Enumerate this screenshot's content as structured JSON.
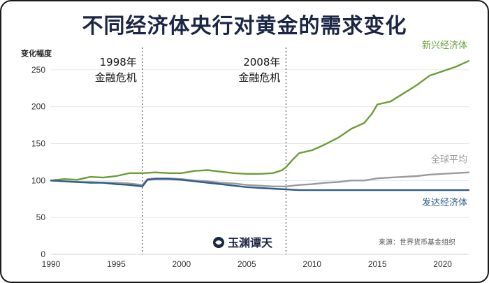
{
  "title": "不同经济体央行对黄金的需求变化",
  "source": "来源：世界货币基金组织",
  "logo_text": "玉渊谭天",
  "colors": {
    "emerging": "#6a9e36",
    "global": "#9a9a9a",
    "developed": "#2f5b8e",
    "title": "#1b2545",
    "grid": "#e6e6e6"
  },
  "chart_data": {
    "type": "line",
    "ylabel": "变化幅度",
    "xlim": [
      1990,
      2022
    ],
    "ylim": [
      0,
      265
    ],
    "x_ticks": [
      1990,
      1995,
      2000,
      2005,
      2010,
      2015,
      2020
    ],
    "y_ticks": [
      0,
      50,
      100,
      150,
      200,
      250
    ],
    "grid": "horizontal",
    "annotations": [
      {
        "x": 1997,
        "lines": [
          "1998年",
          "金融危机"
        ]
      },
      {
        "x": 2008,
        "lines": [
          "2008年",
          "金融危机"
        ]
      }
    ],
    "series": [
      {
        "name": "新兴经济体",
        "color_key": "emerging",
        "points": [
          [
            1990,
            100
          ],
          [
            1991,
            102
          ],
          [
            1992,
            101
          ],
          [
            1993,
            105
          ],
          [
            1994,
            104
          ],
          [
            1995,
            106
          ],
          [
            1996,
            110
          ],
          [
            1997,
            110
          ],
          [
            1998,
            111
          ],
          [
            1999,
            110
          ],
          [
            2000,
            110
          ],
          [
            2001,
            113
          ],
          [
            2002,
            114
          ],
          [
            2003,
            112
          ],
          [
            2004,
            110
          ],
          [
            2005,
            109
          ],
          [
            2006,
            109
          ],
          [
            2007,
            110
          ],
          [
            2007.7,
            114
          ],
          [
            2008,
            118
          ],
          [
            2008.5,
            128
          ],
          [
            2009,
            137
          ],
          [
            2010,
            141
          ],
          [
            2011,
            149
          ],
          [
            2012,
            158
          ],
          [
            2013,
            170
          ],
          [
            2014,
            178
          ],
          [
            2014.6,
            191
          ],
          [
            2015,
            203
          ],
          [
            2016,
            207
          ],
          [
            2017,
            218
          ],
          [
            2018,
            229
          ],
          [
            2019,
            242
          ],
          [
            2020,
            248
          ],
          [
            2021,
            254
          ],
          [
            2022,
            262
          ]
        ]
      },
      {
        "name": "全球平均",
        "color_key": "global",
        "points": [
          [
            1990,
            100
          ],
          [
            1991,
            99
          ],
          [
            1992,
            98
          ],
          [
            1993,
            98
          ],
          [
            1994,
            97
          ],
          [
            1995,
            97
          ],
          [
            1996,
            96
          ],
          [
            1997,
            94
          ],
          [
            1997.4,
            102
          ],
          [
            1998,
            103
          ],
          [
            1999,
            103
          ],
          [
            2000,
            102
          ],
          [
            2001,
            100
          ],
          [
            2002,
            99
          ],
          [
            2003,
            97
          ],
          [
            2004,
            96
          ],
          [
            2005,
            94
          ],
          [
            2006,
            93
          ],
          [
            2007,
            92
          ],
          [
            2008,
            92
          ],
          [
            2009,
            94
          ],
          [
            2010,
            95
          ],
          [
            2011,
            97
          ],
          [
            2012,
            98
          ],
          [
            2013,
            100
          ],
          [
            2014,
            100
          ],
          [
            2015,
            103
          ],
          [
            2016,
            104
          ],
          [
            2017,
            105
          ],
          [
            2018,
            106
          ],
          [
            2019,
            108
          ],
          [
            2020,
            109
          ],
          [
            2021,
            110
          ],
          [
            2022,
            111
          ]
        ]
      },
      {
        "name": "发达经济体",
        "color_key": "developed",
        "points": [
          [
            1990,
            100
          ],
          [
            1991,
            99
          ],
          [
            1992,
            98
          ],
          [
            1993,
            97
          ],
          [
            1994,
            97
          ],
          [
            1995,
            95
          ],
          [
            1996,
            94
          ],
          [
            1997,
            92
          ],
          [
            1997.4,
            101
          ],
          [
            1998,
            102
          ],
          [
            1999,
            102
          ],
          [
            2000,
            101
          ],
          [
            2001,
            99
          ],
          [
            2002,
            97
          ],
          [
            2003,
            95
          ],
          [
            2004,
            93
          ],
          [
            2005,
            91
          ],
          [
            2006,
            90
          ],
          [
            2007,
            89
          ],
          [
            2008,
            88
          ],
          [
            2009,
            87
          ],
          [
            2010,
            87
          ],
          [
            2012,
            87
          ],
          [
            2014,
            87
          ],
          [
            2016,
            87
          ],
          [
            2018,
            87
          ],
          [
            2020,
            87
          ],
          [
            2022,
            87
          ]
        ]
      }
    ]
  }
}
